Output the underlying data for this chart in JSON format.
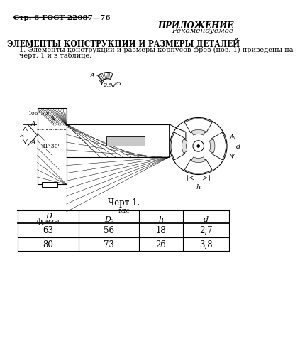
{
  "page_header": "Стр. 6 ГОСТ 22087—76",
  "top_right_title": "ПРИЛОЖЕНИЕ",
  "top_right_subtitle": "Рекомендуемое",
  "section_title": "ЭЛЕМЕНТЫ КОНСТРУКЦИИ И РАЗМЕРЫ ДЕТАЛЕЙ",
  "para_line1": "1. Элементы конструкции и размеры корпусов фрез (поз. 1) приведены на",
  "para_line2": "черт. 1 и в таблице.",
  "figure_caption": "Черт 1.",
  "mm_label": "мм",
  "col_headers_D": "D",
  "col_headers_fresy": "фрезы",
  "col_header_D0": "D₀",
  "col_header_h": "h",
  "col_header_d": "d",
  "table_data": [
    [
      "63",
      "56",
      "18",
      "2,7"
    ],
    [
      "80",
      "73",
      "26",
      "3,8"
    ]
  ],
  "angle1": "106°30'",
  "angle2": "31°30'",
  "section_label": "A — A",
  "point_A": "A",
  "dim_h": "h",
  "dim_d": "d",
  "dim_25": "2,5",
  "dim_25b": "25",
  "bg_color": "#ffffff",
  "lc": "#000000"
}
